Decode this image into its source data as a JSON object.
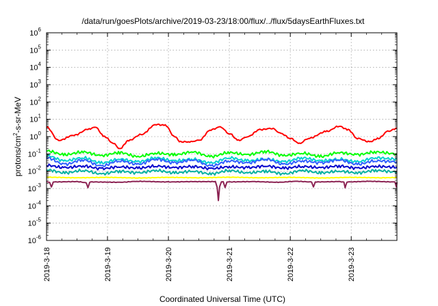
{
  "chart_data": {
    "type": "line",
    "title": "/data/run/goesPlots/archive/2019-03-23/18:00/flux/../flux/5daysEarthFluxes.txt",
    "xlabel": "Coordinated Universal Time (UTC)",
    "ylabel_parts": {
      "prefix": "protons/cm",
      "sup": "2",
      "suffix": "-s-sr-MeV"
    },
    "y_scale": "log",
    "ylim_exponents": [
      -6,
      6
    ],
    "y_tick_base": "10",
    "y_tick_exponents": [
      "-6",
      "-5",
      "-4",
      "-3",
      "-2",
      "-1",
      "0",
      "1",
      "2",
      "3",
      "4",
      "5",
      "6"
    ],
    "x_range_days": [
      "2019-03-18T00:00",
      "2019-03-23T18:00"
    ],
    "x_ticks": [
      {
        "label": "2019-3-18",
        "day": 0
      },
      {
        "label": "2019-3-19",
        "day": 1
      },
      {
        "label": "2019-3-20",
        "day": 2
      },
      {
        "label": "2019-3-21",
        "day": 3
      },
      {
        "label": "2019-3-22",
        "day": 4
      },
      {
        "label": "2019-3-23",
        "day": 5
      }
    ],
    "grid": true,
    "legend": "none",
    "series": [
      {
        "color": "#ff0000",
        "points": [
          [
            0.0,
            3.5
          ],
          [
            0.2,
            0.6
          ],
          [
            0.45,
            1.2
          ],
          [
            0.7,
            2.8
          ],
          [
            0.8,
            3.5
          ],
          [
            0.95,
            1.0
          ],
          [
            1.1,
            0.4
          ],
          [
            1.2,
            0.2
          ],
          [
            1.35,
            0.6
          ],
          [
            1.55,
            1.3
          ],
          [
            1.8,
            5.0
          ],
          [
            1.95,
            4.5
          ],
          [
            2.1,
            1.0
          ],
          [
            2.2,
            0.5
          ],
          [
            2.35,
            0.5
          ],
          [
            2.5,
            0.6
          ],
          [
            2.7,
            2.5
          ],
          [
            2.85,
            3.6
          ],
          [
            3.0,
            1.5
          ],
          [
            3.15,
            0.6
          ],
          [
            3.3,
            1.0
          ],
          [
            3.5,
            2.5
          ],
          [
            3.7,
            3.0
          ],
          [
            3.85,
            1.5
          ],
          [
            4.0,
            0.8
          ],
          [
            4.15,
            0.4
          ],
          [
            4.3,
            0.8
          ],
          [
            4.6,
            2.0
          ],
          [
            4.8,
            4.0
          ],
          [
            4.95,
            2.5
          ],
          [
            5.1,
            0.8
          ],
          [
            5.3,
            0.5
          ],
          [
            5.45,
            0.8
          ],
          [
            5.6,
            2.0
          ],
          [
            5.75,
            3.0
          ]
        ]
      },
      {
        "color": "#00ff00",
        "points": [
          [
            0.0,
            0.15
          ],
          [
            0.3,
            0.09
          ],
          [
            0.6,
            0.13
          ],
          [
            0.9,
            0.08
          ],
          [
            1.2,
            0.12
          ],
          [
            1.5,
            0.07
          ],
          [
            1.8,
            0.11
          ],
          [
            2.1,
            0.09
          ],
          [
            2.4,
            0.13
          ],
          [
            2.7,
            0.07
          ],
          [
            3.0,
            0.12
          ],
          [
            3.3,
            0.09
          ],
          [
            3.6,
            0.14
          ],
          [
            3.9,
            0.08
          ],
          [
            4.2,
            0.11
          ],
          [
            4.5,
            0.07
          ],
          [
            4.8,
            0.12
          ],
          [
            5.1,
            0.09
          ],
          [
            5.4,
            0.13
          ],
          [
            5.75,
            0.1
          ]
        ]
      },
      {
        "color": "#00d0d0",
        "points": [
          [
            0.0,
            0.08
          ],
          [
            0.3,
            0.04
          ],
          [
            0.6,
            0.06
          ],
          [
            0.9,
            0.03
          ],
          [
            1.2,
            0.05
          ],
          [
            1.5,
            0.035
          ],
          [
            1.8,
            0.06
          ],
          [
            2.1,
            0.04
          ],
          [
            2.4,
            0.05
          ],
          [
            2.7,
            0.03
          ],
          [
            3.0,
            0.06
          ],
          [
            3.3,
            0.04
          ],
          [
            3.6,
            0.05
          ],
          [
            3.9,
            0.035
          ],
          [
            4.2,
            0.06
          ],
          [
            4.5,
            0.04
          ],
          [
            4.8,
            0.05
          ],
          [
            5.1,
            0.035
          ],
          [
            5.4,
            0.06
          ],
          [
            5.75,
            0.05
          ]
        ]
      },
      {
        "color": "#3060ff",
        "points": [
          [
            0.0,
            0.06
          ],
          [
            0.3,
            0.025
          ],
          [
            0.6,
            0.045
          ],
          [
            0.9,
            0.02
          ],
          [
            1.2,
            0.04
          ],
          [
            1.5,
            0.025
          ],
          [
            1.8,
            0.05
          ],
          [
            2.1,
            0.03
          ],
          [
            2.4,
            0.045
          ],
          [
            2.7,
            0.02
          ],
          [
            3.0,
            0.04
          ],
          [
            3.3,
            0.03
          ],
          [
            3.6,
            0.05
          ],
          [
            3.9,
            0.025
          ],
          [
            4.2,
            0.04
          ],
          [
            4.5,
            0.03
          ],
          [
            4.8,
            0.045
          ],
          [
            5.1,
            0.025
          ],
          [
            5.4,
            0.04
          ],
          [
            5.75,
            0.035
          ]
        ]
      },
      {
        "color": "#0000cc",
        "points": [
          [
            0.0,
            0.022
          ],
          [
            0.3,
            0.016
          ],
          [
            0.6,
            0.02
          ],
          [
            0.9,
            0.014
          ],
          [
            1.2,
            0.018
          ],
          [
            1.5,
            0.015
          ],
          [
            1.8,
            0.02
          ],
          [
            2.1,
            0.016
          ],
          [
            2.4,
            0.019
          ],
          [
            2.7,
            0.014
          ],
          [
            3.0,
            0.018
          ],
          [
            3.3,
            0.016
          ],
          [
            3.6,
            0.02
          ],
          [
            3.9,
            0.015
          ],
          [
            4.2,
            0.019
          ],
          [
            4.5,
            0.016
          ],
          [
            4.8,
            0.02
          ],
          [
            5.1,
            0.015
          ],
          [
            5.4,
            0.019
          ],
          [
            5.75,
            0.017
          ]
        ]
      },
      {
        "color": "#00b0a0",
        "points": [
          [
            0.0,
            0.012
          ],
          [
            0.3,
            0.008
          ],
          [
            0.6,
            0.011
          ],
          [
            0.9,
            0.007
          ],
          [
            1.2,
            0.01
          ],
          [
            1.5,
            0.008
          ],
          [
            1.8,
            0.011
          ],
          [
            2.1,
            0.008
          ],
          [
            2.4,
            0.01
          ],
          [
            2.7,
            0.007
          ],
          [
            3.0,
            0.011
          ],
          [
            3.3,
            0.008
          ],
          [
            3.6,
            0.01
          ],
          [
            3.9,
            0.007
          ],
          [
            4.2,
            0.011
          ],
          [
            4.5,
            0.008
          ],
          [
            4.8,
            0.01
          ],
          [
            5.1,
            0.008
          ],
          [
            5.4,
            0.011
          ],
          [
            5.75,
            0.009
          ]
        ]
      },
      {
        "color": "#ffff00",
        "points": [
          [
            0.0,
            0.0045
          ],
          [
            0.5,
            0.0042
          ],
          [
            1.0,
            0.0044
          ],
          [
            1.5,
            0.0041
          ],
          [
            2.0,
            0.0044
          ],
          [
            2.5,
            0.0042
          ],
          [
            3.0,
            0.0045
          ],
          [
            3.5,
            0.0042
          ],
          [
            4.0,
            0.0044
          ],
          [
            4.5,
            0.0041
          ],
          [
            5.0,
            0.0044
          ],
          [
            5.5,
            0.0042
          ],
          [
            5.75,
            0.0043
          ]
        ]
      },
      {
        "color": "#8b2252",
        "points": [
          [
            0.0,
            0.0025
          ],
          [
            0.05,
            0.0023
          ],
          [
            0.08,
            0.0012
          ],
          [
            0.11,
            0.0024
          ],
          [
            0.5,
            0.0025
          ],
          [
            0.65,
            0.0022
          ],
          [
            0.68,
            0.0011
          ],
          [
            0.71,
            0.0024
          ],
          [
            1.2,
            0.0023
          ],
          [
            1.5,
            0.0026
          ],
          [
            2.0,
            0.0024
          ],
          [
            2.4,
            0.0025
          ],
          [
            2.77,
            0.0025
          ],
          [
            2.8,
            0.0012
          ],
          [
            2.82,
            0.0002
          ],
          [
            2.84,
            0.0013
          ],
          [
            2.87,
            0.0024
          ],
          [
            2.9,
            0.0025
          ],
          [
            2.93,
            0.0011
          ],
          [
            2.96,
            0.0024
          ],
          [
            3.4,
            0.0025
          ],
          [
            3.8,
            0.0023
          ],
          [
            4.1,
            0.0026
          ],
          [
            4.35,
            0.0024
          ],
          [
            4.38,
            0.0012
          ],
          [
            4.41,
            0.0024
          ],
          [
            4.8,
            0.0025
          ],
          [
            4.88,
            0.0024
          ],
          [
            4.9,
            0.0011
          ],
          [
            4.93,
            0.0024
          ],
          [
            5.3,
            0.0026
          ],
          [
            5.72,
            0.0024
          ],
          [
            5.74,
            0.0012
          ],
          [
            5.75,
            0.0023
          ]
        ]
      }
    ]
  }
}
